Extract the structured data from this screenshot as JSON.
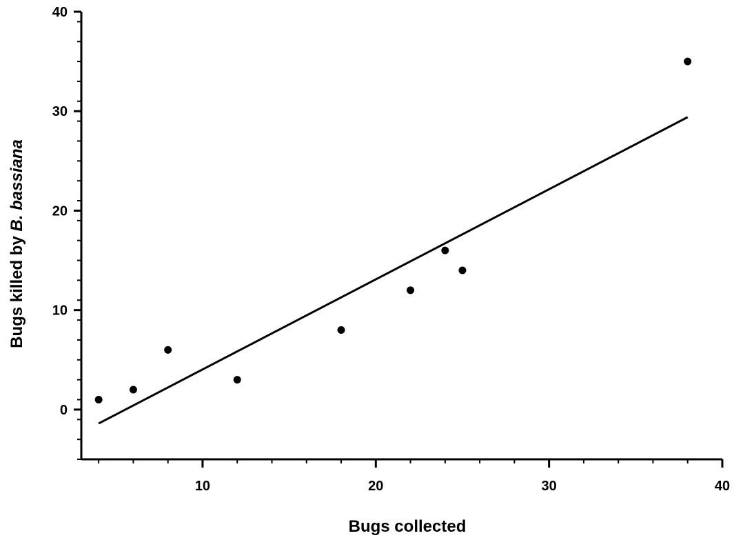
{
  "chart_data": {
    "type": "scatter",
    "title": "",
    "xlabel": "Bugs collected",
    "ylabel_prefix": "Bugs killed by ",
    "ylabel_italic": "B. bassiana",
    "xlim": [
      3,
      40
    ],
    "ylim": [
      -5,
      40
    ],
    "x_ticks": [
      10,
      20,
      30,
      40
    ],
    "y_ticks": [
      0,
      10,
      20,
      30,
      40
    ],
    "x_minor_step": 2,
    "y_minor_step": 2,
    "grid": false,
    "points": [
      {
        "x": 4,
        "y": 1
      },
      {
        "x": 6,
        "y": 2
      },
      {
        "x": 8,
        "y": 6
      },
      {
        "x": 12,
        "y": 3
      },
      {
        "x": 18,
        "y": 8
      },
      {
        "x": 22,
        "y": 12
      },
      {
        "x": 24,
        "y": 16
      },
      {
        "x": 25,
        "y": 14
      },
      {
        "x": 38,
        "y": 35
      }
    ],
    "fit_line": {
      "x": [
        4,
        38
      ],
      "y": [
        -1.4,
        29.4
      ]
    },
    "colors": {
      "points": "#000000",
      "line": "#000000",
      "axes": "#000000"
    }
  }
}
